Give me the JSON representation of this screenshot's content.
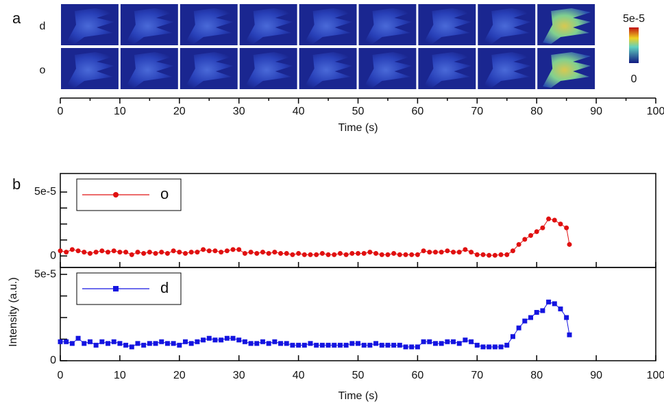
{
  "chart_data": [
    {
      "type": "image-strip",
      "panel_label": "a",
      "rows": [
        "d",
        "o"
      ],
      "xlim": [
        0,
        100
      ],
      "xticks": [
        0,
        10,
        20,
        30,
        40,
        50,
        60,
        70,
        80,
        90,
        100
      ],
      "xlabel": "Time (s)",
      "colorbar": {
        "ticks": [
          {
            "value": 5e-05,
            "label": "5e-5"
          },
          0
        ]
      }
    },
    {
      "type": "stacked-scatter-line",
      "panel_label": "b",
      "ylabel": "Intensity (a.u.)",
      "xlabel": "Time (s)",
      "xlim": [
        0,
        100
      ],
      "xticks": [
        0,
        10,
        20,
        30,
        40,
        50,
        60,
        70,
        80,
        90,
        100
      ],
      "legend": "upper left",
      "panels": [
        {
          "ylim": [
            -9e-06,
            6.45e-05
          ],
          "yticks": [
            0,
            {
              "value": 5e-05,
              "label": "5e-5"
            }
          ],
          "yminorticks": [
            1.25e-05,
            2.5e-05,
            3.75e-05
          ],
          "series": [
            {
              "name": "o",
              "color": "#e01010",
              "marker": "circle",
              "x": [
                0,
                1,
                2,
                3,
                4,
                5,
                6,
                7,
                8,
                9,
                10,
                11,
                12,
                13,
                14,
                15,
                16,
                17,
                18,
                19,
                20,
                21,
                22,
                23,
                24,
                25,
                26,
                27,
                28,
                29,
                30,
                31,
                32,
                33,
                34,
                35,
                36,
                37,
                38,
                39,
                40,
                41,
                42,
                43,
                44,
                45,
                46,
                47,
                48,
                49,
                50,
                51,
                52,
                53,
                54,
                55,
                56,
                57,
                58,
                59,
                60,
                61,
                62,
                63,
                64,
                65,
                66,
                67,
                68,
                69,
                70,
                71,
                72,
                73,
                74,
                75,
                76,
                77,
                78,
                79,
                80,
                81,
                82,
                83,
                84,
                85,
                85.5
              ],
              "values": [
                4e-06,
                3e-06,
                5e-06,
                4e-06,
                3e-06,
                2e-06,
                3e-06,
                4e-06,
                3e-06,
                4e-06,
                3e-06,
                3e-06,
                1e-06,
                3e-06,
                2e-06,
                3e-06,
                2e-06,
                3e-06,
                2e-06,
                4e-06,
                3e-06,
                2e-06,
                3e-06,
                3e-06,
                5e-06,
                4e-06,
                4e-06,
                3e-06,
                4e-06,
                5e-06,
                5e-06,
                2e-06,
                3e-06,
                2e-06,
                3e-06,
                2e-06,
                3e-06,
                2e-06,
                2e-06,
                1e-06,
                2e-06,
                1e-06,
                1e-06,
                1e-06,
                2e-06,
                1e-06,
                1e-06,
                2e-06,
                1e-06,
                2e-06,
                2e-06,
                2e-06,
                3e-06,
                2e-06,
                1e-06,
                1e-06,
                2e-06,
                1e-06,
                1e-06,
                1e-06,
                1e-06,
                4e-06,
                3e-06,
                3e-06,
                3e-06,
                4e-06,
                3e-06,
                3e-06,
                5e-06,
                3e-06,
                1e-06,
                1e-06,
                5e-07,
                5e-07,
                1e-06,
                1e-06,
                4e-06,
                9e-06,
                1.3e-05,
                1.6e-05,
                1.9e-05,
                2.2e-05,
                2.9e-05,
                2.8e-05,
                2.5e-05,
                2.2e-05,
                9e-06
              ]
            }
          ]
        },
        {
          "ylim": [
            0,
            5.4e-05
          ],
          "yticks": [
            0,
            {
              "value": 5e-05,
              "label": "5e-5"
            }
          ],
          "yminorticks": [
            1.25e-05,
            2.5e-05,
            3.75e-05
          ],
          "series": [
            {
              "name": "d",
              "color": "#1414e0",
              "marker": "square",
              "x": [
                0,
                1,
                2,
                3,
                4,
                5,
                6,
                7,
                8,
                9,
                10,
                11,
                12,
                13,
                14,
                15,
                16,
                17,
                18,
                19,
                20,
                21,
                22,
                23,
                24,
                25,
                26,
                27,
                28,
                29,
                30,
                31,
                32,
                33,
                34,
                35,
                36,
                37,
                38,
                39,
                40,
                41,
                42,
                43,
                44,
                45,
                46,
                47,
                48,
                49,
                50,
                51,
                52,
                53,
                54,
                55,
                56,
                57,
                58,
                59,
                60,
                61,
                62,
                63,
                64,
                65,
                66,
                67,
                68,
                69,
                70,
                71,
                72,
                73,
                74,
                75,
                76,
                77,
                78,
                79,
                80,
                81,
                82,
                83,
                84,
                85,
                85.5
              ],
              "values": [
                1.1e-05,
                1.1e-05,
                1e-05,
                1.3e-05,
                1e-05,
                1.1e-05,
                9e-06,
                1.1e-05,
                1e-05,
                1.1e-05,
                1e-05,
                9e-06,
                8e-06,
                1e-05,
                9e-06,
                1e-05,
                1e-05,
                1.1e-05,
                1e-05,
                1e-05,
                9e-06,
                1.1e-05,
                1e-05,
                1.1e-05,
                1.2e-05,
                1.3e-05,
                1.2e-05,
                1.2e-05,
                1.3e-05,
                1.3e-05,
                1.2e-05,
                1.1e-05,
                1e-05,
                1e-05,
                1.1e-05,
                1e-05,
                1.1e-05,
                1e-05,
                1e-05,
                9e-06,
                9e-06,
                9e-06,
                1e-05,
                9e-06,
                9e-06,
                9e-06,
                9e-06,
                9e-06,
                9e-06,
                1e-05,
                1e-05,
                9e-06,
                9e-06,
                1e-05,
                9e-06,
                9e-06,
                9e-06,
                9e-06,
                8e-06,
                8e-06,
                8e-06,
                1.1e-05,
                1.1e-05,
                1e-05,
                1e-05,
                1.1e-05,
                1.1e-05,
                1e-05,
                1.2e-05,
                1.1e-05,
                9e-06,
                8e-06,
                8e-06,
                8e-06,
                8e-06,
                9e-06,
                1.4e-05,
                1.9e-05,
                2.3e-05,
                2.5e-05,
                2.8e-05,
                2.9e-05,
                3.4e-05,
                3.3e-05,
                3e-05,
                2.5e-05,
                1.5e-05
              ]
            }
          ]
        }
      ]
    }
  ]
}
